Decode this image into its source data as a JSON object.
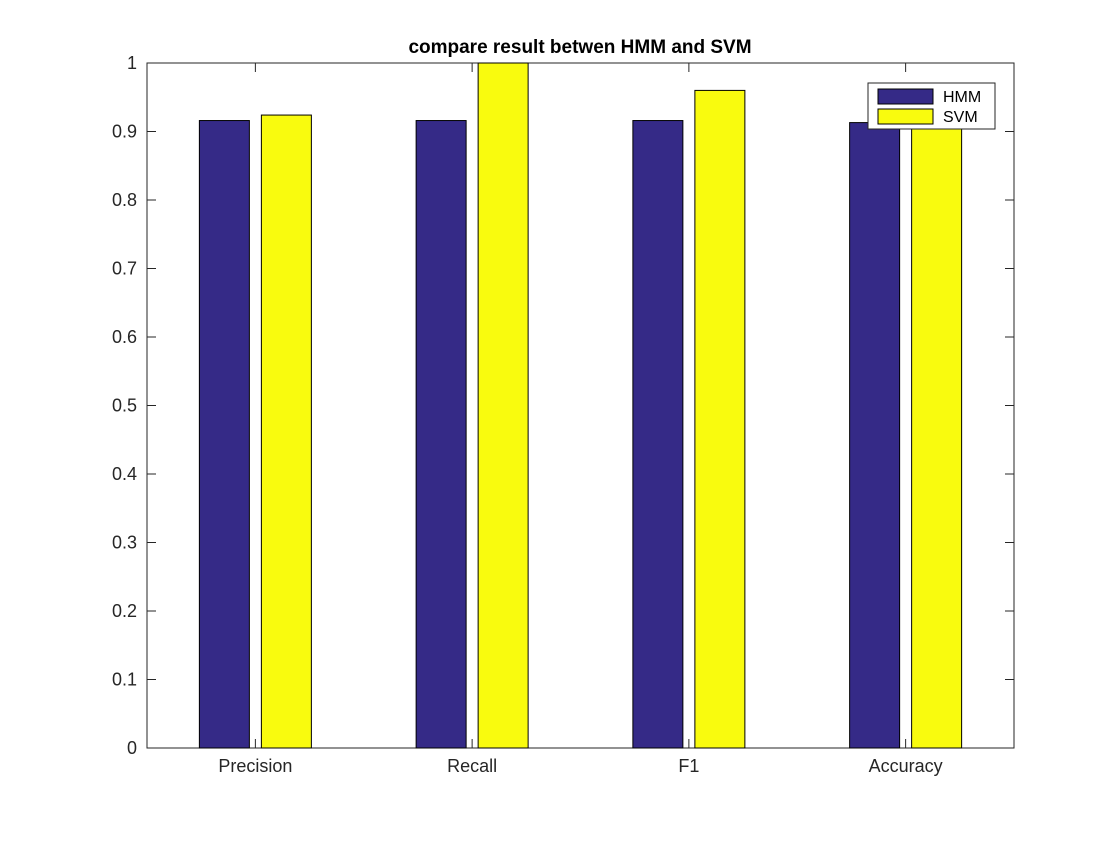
{
  "chart_data": {
    "type": "bar",
    "title": "compare result betwen HMM and SVM",
    "xlabel": "",
    "ylabel": "",
    "categories": [
      "Precision",
      "Recall",
      "F1",
      "Accuracy"
    ],
    "series": [
      {
        "name": "HMM",
        "values": [
          0.916,
          0.916,
          0.916,
          0.913
        ],
        "color": "#352A87"
      },
      {
        "name": "SVM",
        "values": [
          0.924,
          1.0,
          0.96,
          0.915
        ],
        "color": "#F9FB0E"
      }
    ],
    "ylim": [
      0,
      1
    ],
    "yticks": [
      "0",
      "0.1",
      "0.2",
      "0.3",
      "0.4",
      "0.5",
      "0.6",
      "0.7",
      "0.8",
      "0.9",
      "1"
    ],
    "grid": false,
    "legend_position": "top-right",
    "edge_color": "#000000"
  }
}
